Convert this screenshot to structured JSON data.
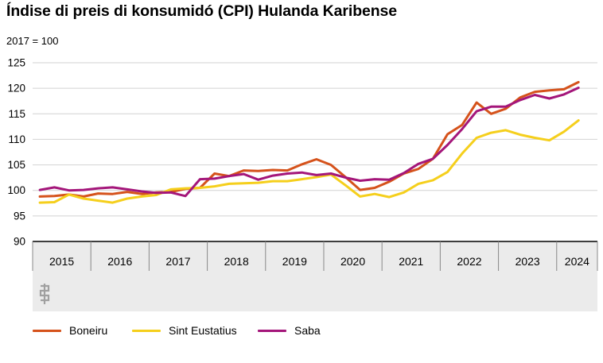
{
  "chart_data": {
    "type": "line",
    "title": "Índise di preis di konsumidó (CPI) Hulanda Karibense",
    "ylabel": "2017 = 100",
    "ylim": [
      90,
      125
    ],
    "yticks": [
      90,
      95,
      100,
      105,
      110,
      115,
      120,
      125
    ],
    "x_quarters_start": "2015 Q1",
    "year_labels": [
      "2015",
      "2016",
      "2017",
      "2018",
      "2019",
      "2020",
      "2021",
      "2022",
      "2023",
      "2024"
    ],
    "grid": true,
    "legend_position": "bottom",
    "series": [
      {
        "name": "Boneiru",
        "color": "#d5521b",
        "values": [
          98.8,
          98.9,
          99.2,
          98.8,
          99.4,
          99.3,
          99.7,
          99.3,
          99.6,
          99.7,
          100.3,
          100.5,
          103.3,
          102.8,
          103.9,
          103.8,
          104.0,
          103.9,
          105.1,
          106.1,
          105.0,
          102.6,
          100.1,
          100.5,
          101.7,
          103.3,
          104.2,
          106.2,
          111.0,
          112.8,
          117.2,
          115.0,
          116.0,
          118.2,
          119.3,
          119.6,
          119.8,
          121.2
        ]
      },
      {
        "name": "Sint Eustatius",
        "color": "#f5cf1c",
        "values": [
          97.6,
          97.7,
          99.2,
          98.4,
          98.0,
          97.6,
          98.4,
          98.8,
          99.1,
          100.2,
          100.4,
          100.5,
          100.8,
          101.3,
          101.4,
          101.5,
          101.8,
          101.8,
          102.2,
          102.6,
          103.1,
          101.0,
          98.8,
          99.3,
          98.7,
          99.6,
          101.3,
          102.0,
          103.6,
          107.2,
          110.3,
          111.3,
          111.8,
          110.9,
          110.3,
          109.8,
          111.5,
          113.7
        ]
      },
      {
        "name": "Saba",
        "color": "#a4167a",
        "values": [
          100.1,
          100.6,
          100.0,
          100.1,
          100.4,
          100.6,
          100.2,
          99.8,
          99.5,
          99.6,
          98.9,
          102.2,
          102.3,
          102.8,
          103.2,
          102.1,
          102.9,
          103.3,
          103.5,
          103.0,
          103.3,
          102.5,
          101.9,
          102.2,
          102.1,
          103.4,
          105.2,
          106.2,
          108.9,
          112.0,
          115.5,
          116.4,
          116.4,
          117.7,
          118.7,
          118.0,
          118.8,
          120.1
        ]
      }
    ]
  }
}
